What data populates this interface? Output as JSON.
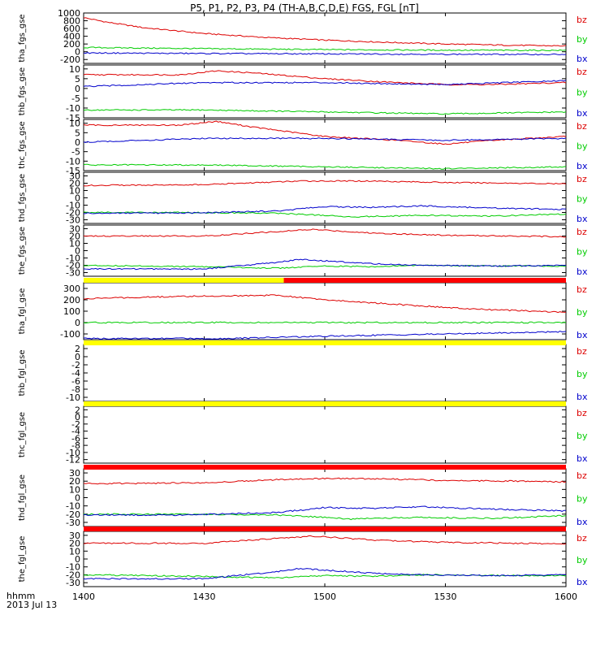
{
  "title": "P5, P1, P2, P3, P4 (TH-A,B,C,D,E) FGS, FGL [nT]",
  "colors": {
    "bx": "#0000cc",
    "by": "#00cc00",
    "bz": "#dd0000",
    "frame": "#000000"
  },
  "x_axis": {
    "ticks": [
      "1400",
      "1430",
      "1500",
      "1530",
      "1600"
    ],
    "label_line1": "hhmm",
    "label_line2": "2013 Jul 13",
    "range_hours": [
      0,
      2
    ]
  },
  "chart_data": [
    {
      "type": "line",
      "panel_id": "tha_fgs_gse",
      "ylabel": "tha_fgs_gse",
      "ylim": [
        -300,
        1000
      ],
      "ticks": [
        "1000",
        "800",
        "600",
        "400",
        "200",
        "0",
        "-200"
      ],
      "legend": [
        "bz",
        "by",
        "bx"
      ],
      "series": [
        {
          "name": "bz",
          "x": [
            0,
            0.1,
            0.25,
            0.5,
            0.75,
            1.0,
            1.25,
            1.5,
            1.75,
            2.0
          ],
          "values": [
            880,
            760,
            620,
            470,
            370,
            300,
            245,
            200,
            170,
            150
          ]
        },
        {
          "name": "by",
          "x": [
            0,
            0.5,
            1.0,
            1.5,
            2.0
          ],
          "values": [
            110,
            80,
            55,
            40,
            35
          ]
        },
        {
          "name": "bx",
          "x": [
            0,
            0.5,
            1.0,
            1.5,
            2.0
          ],
          "values": [
            -30,
            -45,
            -55,
            -65,
            -70
          ]
        }
      ]
    },
    {
      "type": "line",
      "panel_id": "thb_fgs_gse",
      "ylabel": "thb_fgs_gse",
      "ylim": [
        -15,
        12
      ],
      "ticks": [
        "10",
        "5",
        "0",
        "-5",
        "-10",
        "-15"
      ],
      "legend": [
        "bz",
        "by",
        "bx"
      ],
      "series": [
        {
          "name": "bz",
          "x": [
            0,
            0.4,
            0.55,
            0.7,
            1.0,
            1.3,
            1.5,
            1.7,
            2.0
          ],
          "values": [
            7,
            7,
            9,
            8,
            5,
            3,
            2,
            2,
            3
          ]
        },
        {
          "name": "by",
          "x": [
            0,
            0.5,
            1.0,
            1.5,
            2.0
          ],
          "values": [
            -11,
            -11,
            -12,
            -13,
            -12
          ]
        },
        {
          "name": "bx",
          "x": [
            0,
            0.5,
            1.0,
            1.5,
            2.0
          ],
          "values": [
            1,
            3,
            3,
            2,
            4
          ]
        }
      ]
    },
    {
      "type": "line",
      "panel_id": "thc_fgs_gse",
      "ylabel": "thc_fgs_gse",
      "ylim": [
        -15,
        12
      ],
      "ticks": [
        "10",
        "5",
        "0",
        "-5",
        "-10",
        "-15"
      ],
      "legend": [
        "bz",
        "by",
        "bx"
      ],
      "series": [
        {
          "name": "bz",
          "x": [
            0,
            0.4,
            0.55,
            0.7,
            1.0,
            1.3,
            1.5,
            1.7,
            2.0
          ],
          "values": [
            9,
            9,
            11,
            8,
            3,
            1,
            -1,
            1,
            3
          ]
        },
        {
          "name": "by",
          "x": [
            0,
            0.5,
            1.0,
            1.5,
            2.0
          ],
          "values": [
            -12,
            -12,
            -13,
            -14,
            -13
          ]
        },
        {
          "name": "bx",
          "x": [
            0,
            0.5,
            1.0,
            1.5,
            2.0
          ],
          "values": [
            0,
            2,
            2,
            1,
            2
          ]
        }
      ]
    },
    {
      "type": "line",
      "panel_id": "thd_fgs_gse",
      "ylabel": "thd_fgs_gse",
      "ylim": [
        -35,
        35
      ],
      "ticks": [
        "30",
        "20",
        "10",
        "0",
        "-10",
        "-20",
        "-30"
      ],
      "legend": [
        "bz",
        "by",
        "bx"
      ],
      "series": [
        {
          "name": "bz",
          "x": [
            0,
            0.5,
            0.9,
            1.2,
            1.5,
            1.8,
            2.0
          ],
          "values": [
            17,
            18,
            23,
            23,
            21,
            20,
            19
          ]
        },
        {
          "name": "by",
          "x": [
            0,
            0.4,
            0.8,
            1.0,
            1.1,
            1.4,
            1.7,
            2.0
          ],
          "values": [
            -20,
            -20,
            -21,
            -24,
            -26,
            -24,
            -25,
            -22
          ]
        },
        {
          "name": "bx",
          "x": [
            0,
            0.4,
            0.8,
            1.0,
            1.2,
            1.4,
            1.7,
            2.0
          ],
          "values": [
            -21,
            -21,
            -18,
            -12,
            -13,
            -11,
            -14,
            -16
          ]
        }
      ]
    },
    {
      "type": "line",
      "panel_id": "the_fgs_gse",
      "ylabel": "the_fgs_gse",
      "ylim": [
        -35,
        35
      ],
      "ticks": [
        "30",
        "20",
        "10",
        "0",
        "-10",
        "-20",
        "-30"
      ],
      "legend": [
        "bz",
        "by",
        "bx"
      ],
      "series": [
        {
          "name": "bz",
          "x": [
            0,
            0.5,
            0.8,
            0.95,
            1.2,
            1.5,
            1.8,
            2.0
          ],
          "values": [
            20,
            20,
            26,
            29,
            24,
            21,
            20,
            19
          ]
        },
        {
          "name": "by",
          "x": [
            0,
            0.5,
            0.8,
            1.0,
            1.2,
            1.4,
            1.7,
            2.0
          ],
          "values": [
            -20,
            -22,
            -24,
            -21,
            -22,
            -20,
            -21,
            -21
          ]
        },
        {
          "name": "bx",
          "x": [
            0,
            0.5,
            0.8,
            0.9,
            1.2,
            1.4,
            1.7,
            2.0
          ],
          "values": [
            -25,
            -25,
            -16,
            -12,
            -18,
            -20,
            -21,
            -20
          ]
        }
      ]
    },
    {
      "type": "line",
      "panel_id": "tha_fgl_gse",
      "ylabel": "tha_fgl_gse",
      "ylim": [
        -150,
        350
      ],
      "ticks": [
        "300",
        "200",
        "100",
        "0",
        "-100"
      ],
      "legend": [
        "bz",
        "by",
        "bx"
      ],
      "series": [
        {
          "name": "bz",
          "x": [
            0,
            0.4,
            0.8,
            1.0,
            1.3,
            1.6,
            2.0
          ],
          "values": [
            210,
            230,
            240,
            200,
            160,
            120,
            90
          ]
        },
        {
          "name": "by",
          "x": [
            0,
            0.5,
            1.0,
            1.5,
            2.0
          ],
          "values": [
            0,
            0,
            0,
            0,
            0
          ]
        },
        {
          "name": "bx",
          "x": [
            0,
            0.6,
            1.0,
            1.5,
            2.0
          ],
          "values": [
            -140,
            -140,
            -120,
            -100,
            -80
          ]
        }
      ]
    },
    {
      "type": "line",
      "panel_id": "thb_fgl_gse",
      "ylabel": "thb_fgl_gse",
      "ylim": [
        -11,
        3
      ],
      "ticks": [
        "2",
        "0",
        "-2",
        "-4",
        "-6",
        "-8",
        "-10"
      ],
      "legend": [
        "bz",
        "by",
        "bx"
      ],
      "series": []
    },
    {
      "type": "line",
      "panel_id": "thc_fgl_gse",
      "ylabel": "thc_fgl_gse",
      "ylim": [
        -13,
        3
      ],
      "ticks": [
        "2",
        "0",
        "-2",
        "-4",
        "-6",
        "-8",
        "-10",
        "-12"
      ],
      "legend": [
        "bz",
        "by",
        "bx"
      ],
      "series": []
    },
    {
      "type": "line",
      "panel_id": "thd_fgl_gse",
      "ylabel": "thd_fgl_gse",
      "ylim": [
        -35,
        35
      ],
      "ticks": [
        "30",
        "20",
        "10",
        "0",
        "-10",
        "-20",
        "-30"
      ],
      "legend": [
        "bz",
        "by",
        "bx"
      ],
      "series": [
        {
          "name": "bz",
          "x": [
            0,
            0.5,
            0.9,
            1.2,
            1.5,
            1.8,
            2.0
          ],
          "values": [
            17,
            18,
            23,
            23,
            21,
            20,
            19
          ]
        },
        {
          "name": "by",
          "x": [
            0,
            0.4,
            0.8,
            1.0,
            1.1,
            1.4,
            1.7,
            2.0
          ],
          "values": [
            -20,
            -20,
            -21,
            -24,
            -26,
            -24,
            -25,
            -22
          ]
        },
        {
          "name": "bx",
          "x": [
            0,
            0.4,
            0.8,
            1.0,
            1.2,
            1.4,
            1.7,
            2.0
          ],
          "values": [
            -21,
            -21,
            -18,
            -12,
            -13,
            -11,
            -14,
            -16
          ]
        }
      ]
    },
    {
      "type": "line",
      "panel_id": "the_fgl_gse",
      "ylabel": "the_fgl_gse",
      "ylim": [
        -35,
        35
      ],
      "ticks": [
        "30",
        "20",
        "10",
        "0",
        "-10",
        "-20",
        "-30"
      ],
      "legend": [
        "bz",
        "by",
        "bx"
      ],
      "series": [
        {
          "name": "bz",
          "x": [
            0,
            0.5,
            0.8,
            0.95,
            1.2,
            1.5,
            1.8,
            2.0
          ],
          "values": [
            20,
            20,
            26,
            29,
            24,
            21,
            20,
            19
          ]
        },
        {
          "name": "by",
          "x": [
            0,
            0.5,
            0.8,
            1.0,
            1.2,
            1.4,
            1.7,
            2.0
          ],
          "values": [
            -20,
            -22,
            -24,
            -21,
            -22,
            -20,
            -21,
            -21
          ]
        },
        {
          "name": "bx",
          "x": [
            0,
            0.5,
            0.8,
            0.9,
            1.2,
            1.4,
            1.7,
            2.0
          ],
          "values": [
            -25,
            -25,
            -16,
            -12,
            -18,
            -20,
            -21,
            -20
          ]
        }
      ]
    }
  ],
  "status_bars": [
    {
      "segments": [
        {
          "from": 0,
          "to": 0.83,
          "color": "#ffff00"
        },
        {
          "from": 0.83,
          "to": 2,
          "color": "#ff0000"
        }
      ]
    },
    {
      "segments": [
        {
          "from": 0,
          "to": 2,
          "color": "#ffff00"
        }
      ]
    },
    {
      "segments": [
        {
          "from": 0,
          "to": 2,
          "color": "#ffff00"
        }
      ]
    },
    {
      "segments": [
        {
          "from": 0,
          "to": 2,
          "color": "#ff0000"
        }
      ]
    },
    {
      "segments": [
        {
          "from": 0,
          "to": 2,
          "color": "#ff0000"
        }
      ]
    }
  ]
}
